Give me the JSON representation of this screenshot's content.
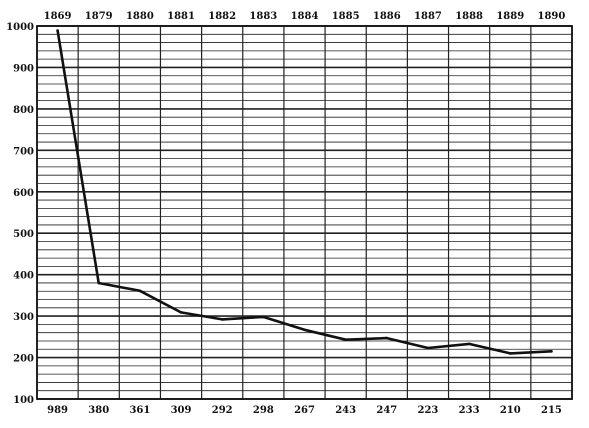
{
  "chart_data": {
    "type": "line",
    "categories": [
      "1869",
      "1879",
      "1880",
      "1881",
      "1882",
      "1883",
      "1884",
      "1885",
      "1886",
      "1887",
      "1888",
      "1889",
      "1890"
    ],
    "values": [
      989,
      380,
      361,
      309,
      292,
      298,
      267,
      243,
      247,
      223,
      233,
      210,
      215
    ],
    "value_labels": [
      "989",
      "380",
      "361",
      "309",
      "292",
      "298",
      "267",
      "243",
      "247",
      "223",
      "233",
      "210",
      "215"
    ],
    "y_ticks": [
      "1000",
      "900",
      "800",
      "700",
      "600",
      "500",
      "400",
      "300",
      "200",
      "100"
    ],
    "ylim": [
      100,
      1000
    ],
    "title": "",
    "xlabel": "",
    "ylabel": "",
    "grid": true,
    "minor_grid_step": 20,
    "major_grid_step": 100,
    "x_labels_position": "top",
    "value_labels_position": "bottom",
    "line_color": "#111111",
    "grid_color": "#222222"
  }
}
